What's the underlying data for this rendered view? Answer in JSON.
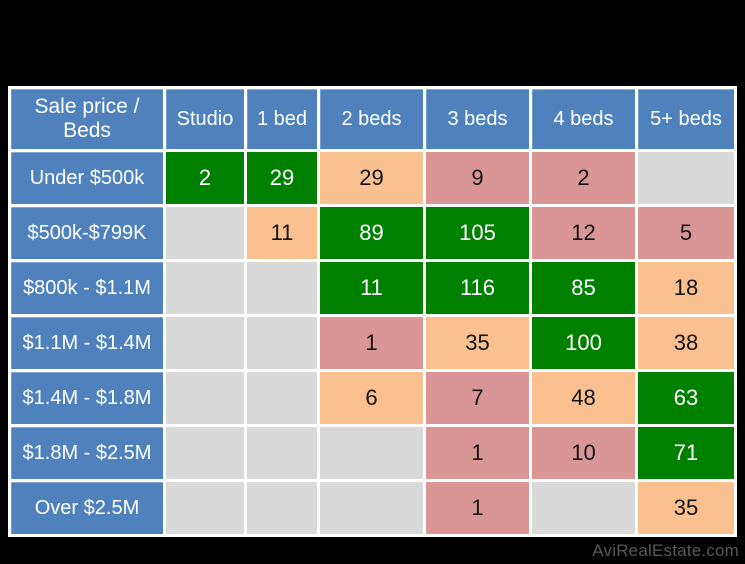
{
  "watermark": "AviRealEstate.com",
  "colors": {
    "background": "#000000",
    "header_blue": "#4F81BD",
    "grid_white": "#ffffff",
    "high_green": "#008000",
    "mid_orange": "#FAC090",
    "low_pink": "#D99694",
    "empty_gray": "#D9D9D9",
    "watermark_gray": "#595959"
  },
  "chart_data": {
    "type": "table",
    "subtype": "heatmap",
    "corner_label": "Sale price / Beds",
    "columns": [
      "Studio",
      "1 bed",
      "2 beds",
      "3 beds",
      "4 beds",
      "5+ beds"
    ],
    "rows": [
      {
        "label": "Under $500k",
        "cells": [
          {
            "v": "2",
            "c": "green"
          },
          {
            "v": "29",
            "c": "green"
          },
          {
            "v": "29",
            "c": "orange"
          },
          {
            "v": "9",
            "c": "pink"
          },
          {
            "v": "2",
            "c": "pink"
          },
          {
            "v": "",
            "c": "empty"
          }
        ]
      },
      {
        "label": "$500k-$799K",
        "cells": [
          {
            "v": "",
            "c": "empty"
          },
          {
            "v": "11",
            "c": "orange"
          },
          {
            "v": "89",
            "c": "green"
          },
          {
            "v": "105",
            "c": "green"
          },
          {
            "v": "12",
            "c": "pink"
          },
          {
            "v": "5",
            "c": "pink"
          }
        ]
      },
      {
        "label": "$800k - $1.1M",
        "cells": [
          {
            "v": "",
            "c": "empty"
          },
          {
            "v": "",
            "c": "empty"
          },
          {
            "v": "11",
            "c": "green"
          },
          {
            "v": "116",
            "c": "green"
          },
          {
            "v": "85",
            "c": "green"
          },
          {
            "v": "18",
            "c": "orange"
          }
        ]
      },
      {
        "label": "$1.1M - $1.4M",
        "cells": [
          {
            "v": "",
            "c": "empty"
          },
          {
            "v": "",
            "c": "empty"
          },
          {
            "v": "1",
            "c": "pink"
          },
          {
            "v": "35",
            "c": "orange"
          },
          {
            "v": "100",
            "c": "green"
          },
          {
            "v": "38",
            "c": "orange"
          }
        ]
      },
      {
        "label": "$1.4M - $1.8M",
        "cells": [
          {
            "v": "",
            "c": "empty"
          },
          {
            "v": "",
            "c": "empty"
          },
          {
            "v": "6",
            "c": "orange"
          },
          {
            "v": "7",
            "c": "pink"
          },
          {
            "v": "48",
            "c": "orange"
          },
          {
            "v": "63",
            "c": "green"
          }
        ]
      },
      {
        "label": "$1.8M - $2.5M",
        "cells": [
          {
            "v": "",
            "c": "empty"
          },
          {
            "v": "",
            "c": "empty"
          },
          {
            "v": "",
            "c": "empty"
          },
          {
            "v": "1",
            "c": "pink"
          },
          {
            "v": "10",
            "c": "pink"
          },
          {
            "v": "71",
            "c": "green"
          }
        ]
      },
      {
        "label": "Over $2.5M",
        "cells": [
          {
            "v": "",
            "c": "empty"
          },
          {
            "v": "",
            "c": "empty"
          },
          {
            "v": "",
            "c": "empty"
          },
          {
            "v": "1",
            "c": "pink"
          },
          {
            "v": "",
            "c": "empty"
          },
          {
            "v": "35",
            "c": "orange"
          }
        ]
      }
    ]
  }
}
